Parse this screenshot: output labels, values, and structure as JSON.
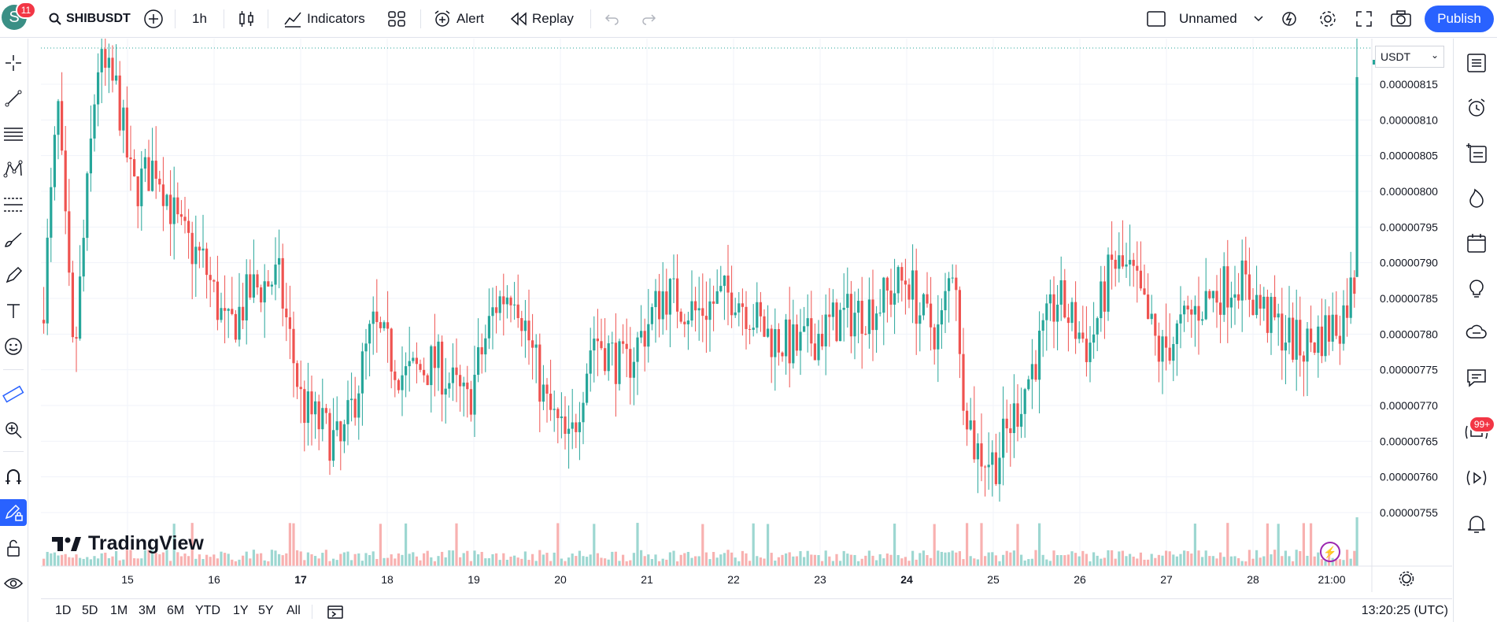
{
  "header": {
    "avatar_letter": "S",
    "notifications": "11",
    "symbol": "SHIBUSDT",
    "interval": "1h",
    "indicators_label": "Indicators",
    "alert_label": "Alert",
    "replay_label": "Replay",
    "layout_name": "Unnamed",
    "publish_label": "Publish"
  },
  "chart": {
    "currency": "USDT",
    "watermark": "TradingView",
    "price_ticks": [
      "0.00000815",
      "0.00000810",
      "0.00000805",
      "0.00000800",
      "0.00000795",
      "0.00000790",
      "0.00000785",
      "0.00000780",
      "0.00000775",
      "0.00000770",
      "0.00000765",
      "0.00000760",
      "0.00000755"
    ],
    "date_ticks": [
      "15",
      "16",
      "17",
      "18",
      "19",
      "20",
      "21",
      "22",
      "23",
      "24",
      "25",
      "26",
      "27",
      "28",
      "21:00"
    ],
    "bold_dates": [
      "17",
      "24"
    ],
    "up_color": "#26a69a",
    "down_color": "#ef5350"
  },
  "chart_data": {
    "type": "candlestick",
    "price_range": [
      7.51e-06,
      8.2e-06
    ],
    "last_price": "0.00000817"
  },
  "bottombar": {
    "ranges": [
      "1D",
      "5D",
      "1M",
      "3M",
      "6M",
      "YTD",
      "1Y",
      "5Y",
      "All"
    ],
    "time": "13:20:25 (UTC)"
  },
  "rightbar": {
    "ideas_badge": "99+"
  }
}
